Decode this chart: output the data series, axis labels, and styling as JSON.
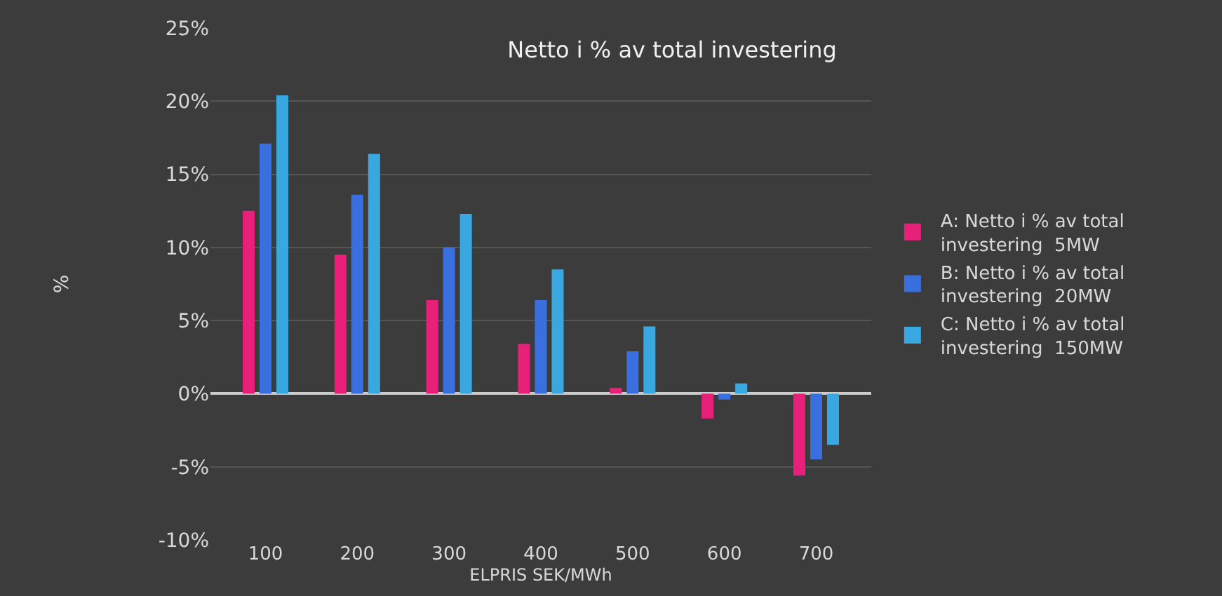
{
  "chart_data": {
    "type": "bar",
    "title": "Netto i % av total investering",
    "xlabel": "ELPRIS SEK/MWh",
    "ylabel": "%",
    "categories": [
      "100",
      "200",
      "300",
      "400",
      "500",
      "600",
      "700"
    ],
    "series": [
      {
        "name": "A: Netto i % av total investering  5MW",
        "color": "#e8207a",
        "values": [
          12.5,
          9.5,
          6.4,
          3.4,
          0.4,
          -1.7,
          -5.6
        ]
      },
      {
        "name": "B: Netto i % av total investering  20MW",
        "color": "#3a6fe0",
        "values": [
          17.1,
          13.6,
          10.0,
          6.4,
          2.9,
          -0.4,
          -4.5
        ]
      },
      {
        "name": "C: Netto i % av total investering  150MW",
        "color": "#3aa8e0",
        "values": [
          20.4,
          16.4,
          12.3,
          8.5,
          4.6,
          0.7,
          -3.5
        ]
      }
    ],
    "ylim": [
      -10,
      25
    ],
    "yticks": [
      {
        "value": -10,
        "label": "-10%"
      },
      {
        "value": -5,
        "label": "-5%"
      },
      {
        "value": 0,
        "label": "0%"
      },
      {
        "value": 5,
        "label": "5%"
      },
      {
        "value": 10,
        "label": "10%"
      },
      {
        "value": 15,
        "label": "15%"
      },
      {
        "value": 20,
        "label": "20%"
      },
      {
        "value": 25,
        "label": "25%"
      }
    ],
    "grid": "y",
    "legend": "right"
  }
}
